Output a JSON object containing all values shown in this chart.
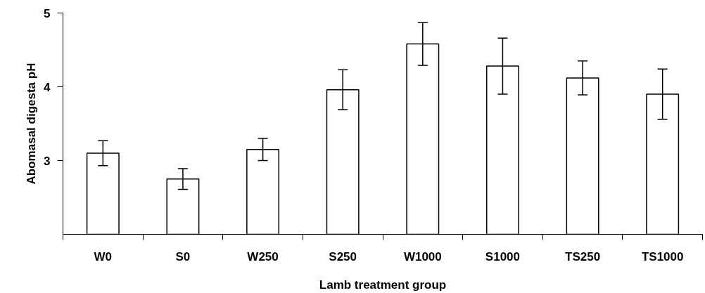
{
  "chart_data": {
    "type": "bar",
    "xlabel": "Lamb treatment group",
    "ylabel": "Abomasal digesta pH",
    "categories": [
      "W0",
      "S0",
      "W250",
      "S250",
      "W1000",
      "S1000",
      "TS250",
      "TS1000"
    ],
    "values": [
      3.1,
      2.75,
      3.15,
      3.96,
      4.58,
      4.28,
      4.12,
      3.9
    ],
    "errors": [
      0.17,
      0.14,
      0.15,
      0.27,
      0.29,
      0.38,
      0.23,
      0.34
    ],
    "color": "#ffffff",
    "ylim": [
      2,
      5
    ],
    "yticks": [
      3,
      4,
      5
    ],
    "grid": false
  }
}
